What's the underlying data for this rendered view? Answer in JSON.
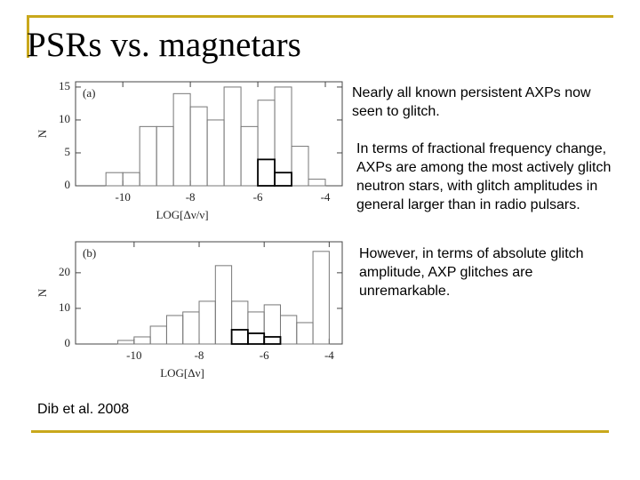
{
  "slide": {
    "title": "PSRs vs. magnetars",
    "bullets": [
      "Nearly all known persistent AXPs now seen to glitch.",
      "In terms of fractional frequency change, AXPs are among the most actively glitch neutron stars, with glitch amplitudes in general larger than in radio pulsars.",
      "However, in terms of absolute glitch amplitude, AXP glitches are unremarkable."
    ],
    "citation": "Dib et al. 2008"
  },
  "chart_data": [
    {
      "type": "histogram",
      "panel_label": "(a)",
      "x_label": "LOG[Δν/ν]",
      "y_label": "N",
      "bins": [
        -10.5,
        -10.0,
        -9.5,
        -9.0,
        -8.5,
        -8.0,
        -7.5,
        -7.0,
        -6.5,
        -6.0,
        -5.5,
        -5.0,
        -4.5,
        -4.0
      ],
      "series": [
        {
          "color": "#777777",
          "values": [
            2,
            2,
            9,
            9,
            14,
            12,
            10,
            15,
            9,
            13,
            15,
            6,
            1
          ]
        },
        {
          "color": "#000000",
          "values": [
            0,
            0,
            0,
            0,
            0,
            0,
            0,
            0,
            0,
            4,
            2,
            0,
            0
          ]
        }
      ],
      "xlim": [
        -11.4,
        -3.5
      ],
      "ylim": [
        0,
        15.8
      ],
      "xticks": [
        -10,
        -8,
        -6,
        -4
      ],
      "yticks": [
        0,
        5,
        10,
        15
      ]
    },
    {
      "type": "histogram",
      "panel_label": "(b)",
      "x_label": "LOG[Δν]",
      "y_label": "N",
      "bins": [
        -10.5,
        -10.0,
        -9.5,
        -9.0,
        -8.5,
        -8.0,
        -7.5,
        -7.0,
        -6.5,
        -6.0,
        -5.5,
        -5.0,
        -4.5,
        -4.0
      ],
      "series": [
        {
          "color": "#777777",
          "values": [
            1,
            2,
            5,
            8,
            9,
            12,
            22,
            12,
            9,
            11,
            8,
            6,
            26
          ]
        },
        {
          "color": "#000000",
          "values": [
            0,
            0,
            0,
            0,
            0,
            0,
            0,
            4,
            3,
            2,
            0,
            0,
            0
          ]
        }
      ],
      "xlim": [
        -11.8,
        -3.6
      ],
      "ylim": [
        0,
        28.7
      ],
      "xticks": [
        -10,
        -8,
        -6,
        -4
      ],
      "yticks": [
        0,
        10,
        20
      ]
    }
  ]
}
